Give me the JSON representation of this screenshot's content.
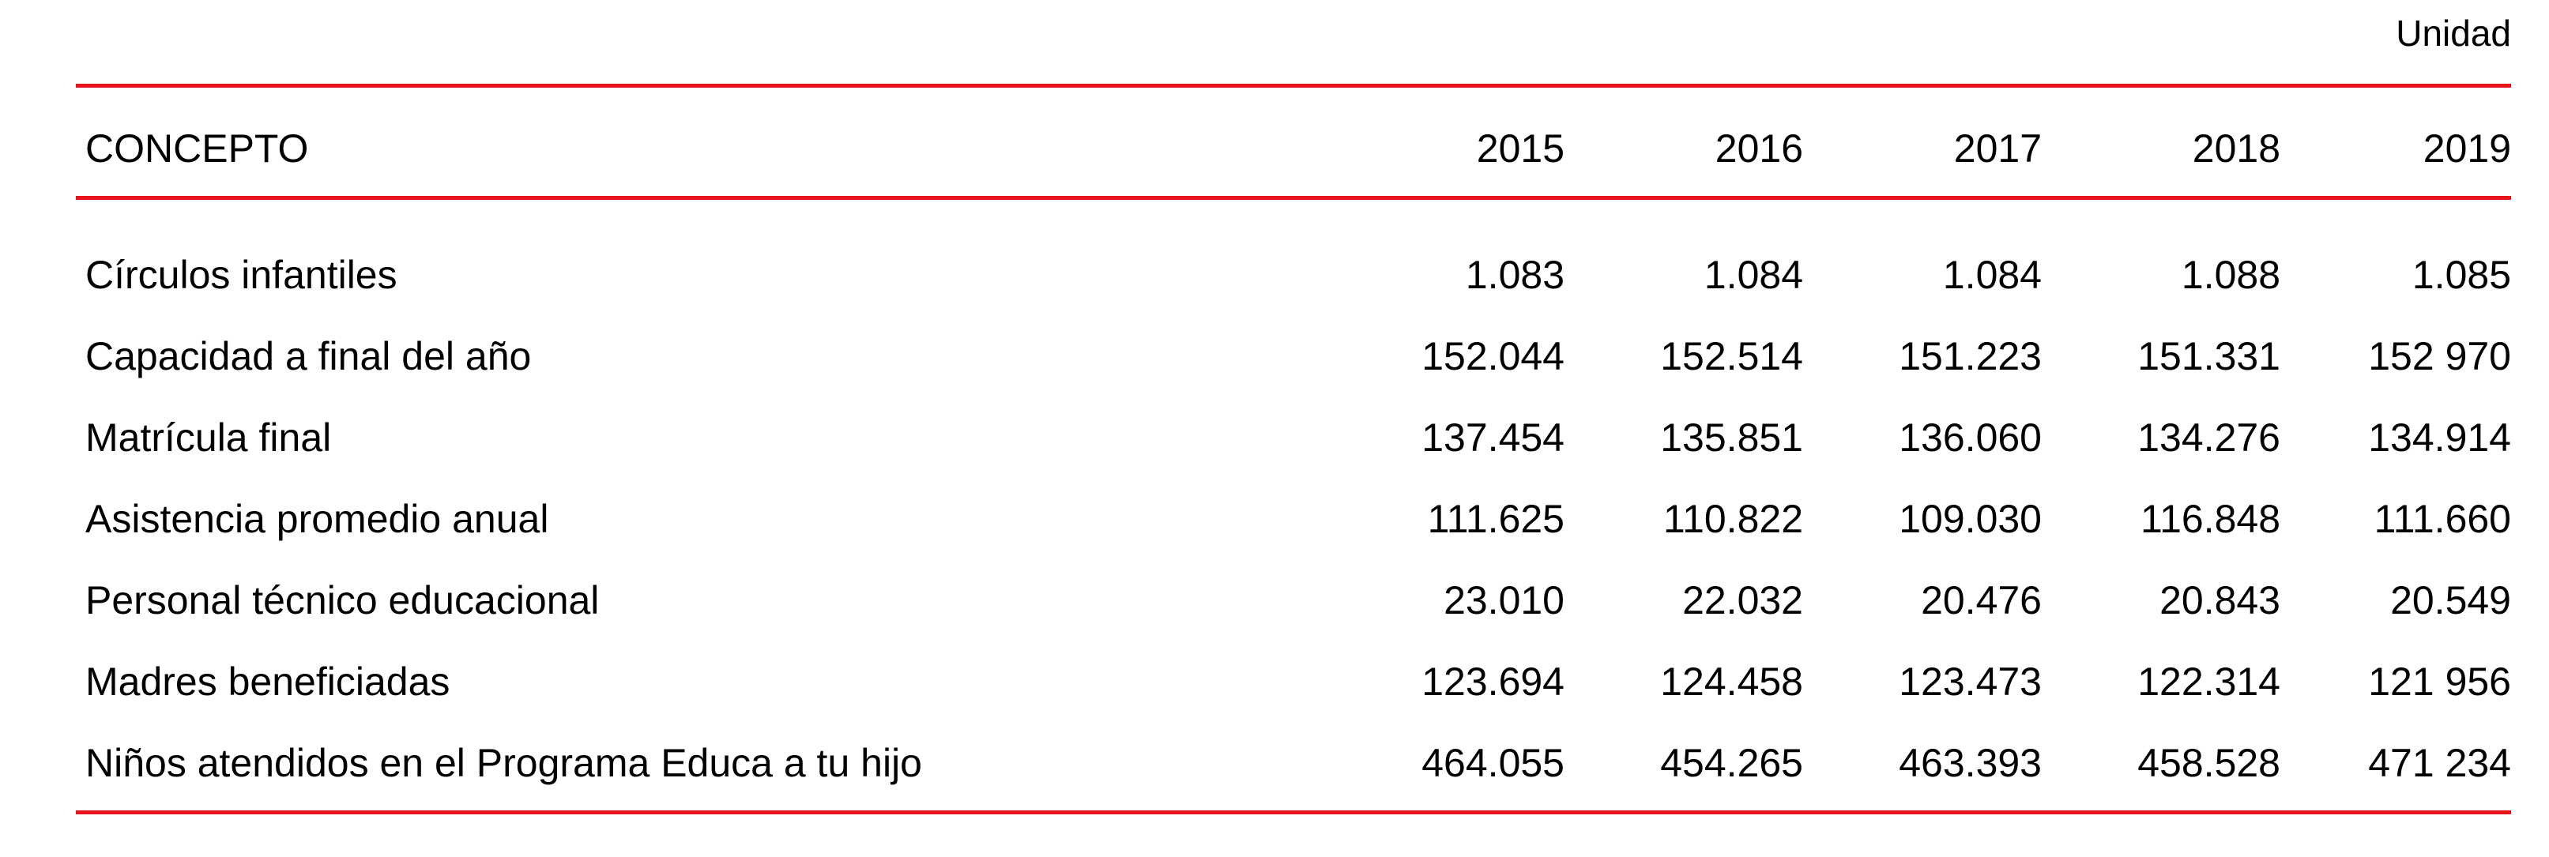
{
  "unit_label": "Unidad",
  "table": {
    "header": {
      "concept": "CONCEPTO",
      "years": [
        "2015",
        "2016",
        "2017",
        "2018",
        "2019"
      ]
    },
    "rows": [
      {
        "concept": "Círculos infantiles",
        "values": [
          "1.083",
          "1.084",
          "1.084",
          "1.088",
          "1.085"
        ]
      },
      {
        "concept": "Capacidad a final del año",
        "values": [
          "152.044",
          "152.514",
          "151.223",
          "151.331",
          "152 970"
        ]
      },
      {
        "concept": "Matrícula final",
        "values": [
          "137.454",
          "135.851",
          "136.060",
          "134.276",
          "134.914"
        ]
      },
      {
        "concept": "Asistencia promedio anual",
        "values": [
          "111.625",
          "110.822",
          "109.030",
          "116.848",
          "111.660"
        ]
      },
      {
        "concept": "Personal técnico educacional",
        "values": [
          "23.010",
          "22.032",
          "20.476",
          "20.843",
          "20.549"
        ]
      },
      {
        "concept": "Madres beneficiadas",
        "values": [
          "123.694",
          "124.458",
          "123.473",
          "122.314",
          "121 956"
        ]
      },
      {
        "concept": "Niños atendidos en el Programa Educa a tu hijo",
        "values": [
          "464.055",
          "454.265",
          "463.393",
          "458.528",
          "471 234"
        ]
      }
    ]
  },
  "colors": {
    "rule": "#e8141b",
    "text": "#000000",
    "background": "#ffffff"
  }
}
